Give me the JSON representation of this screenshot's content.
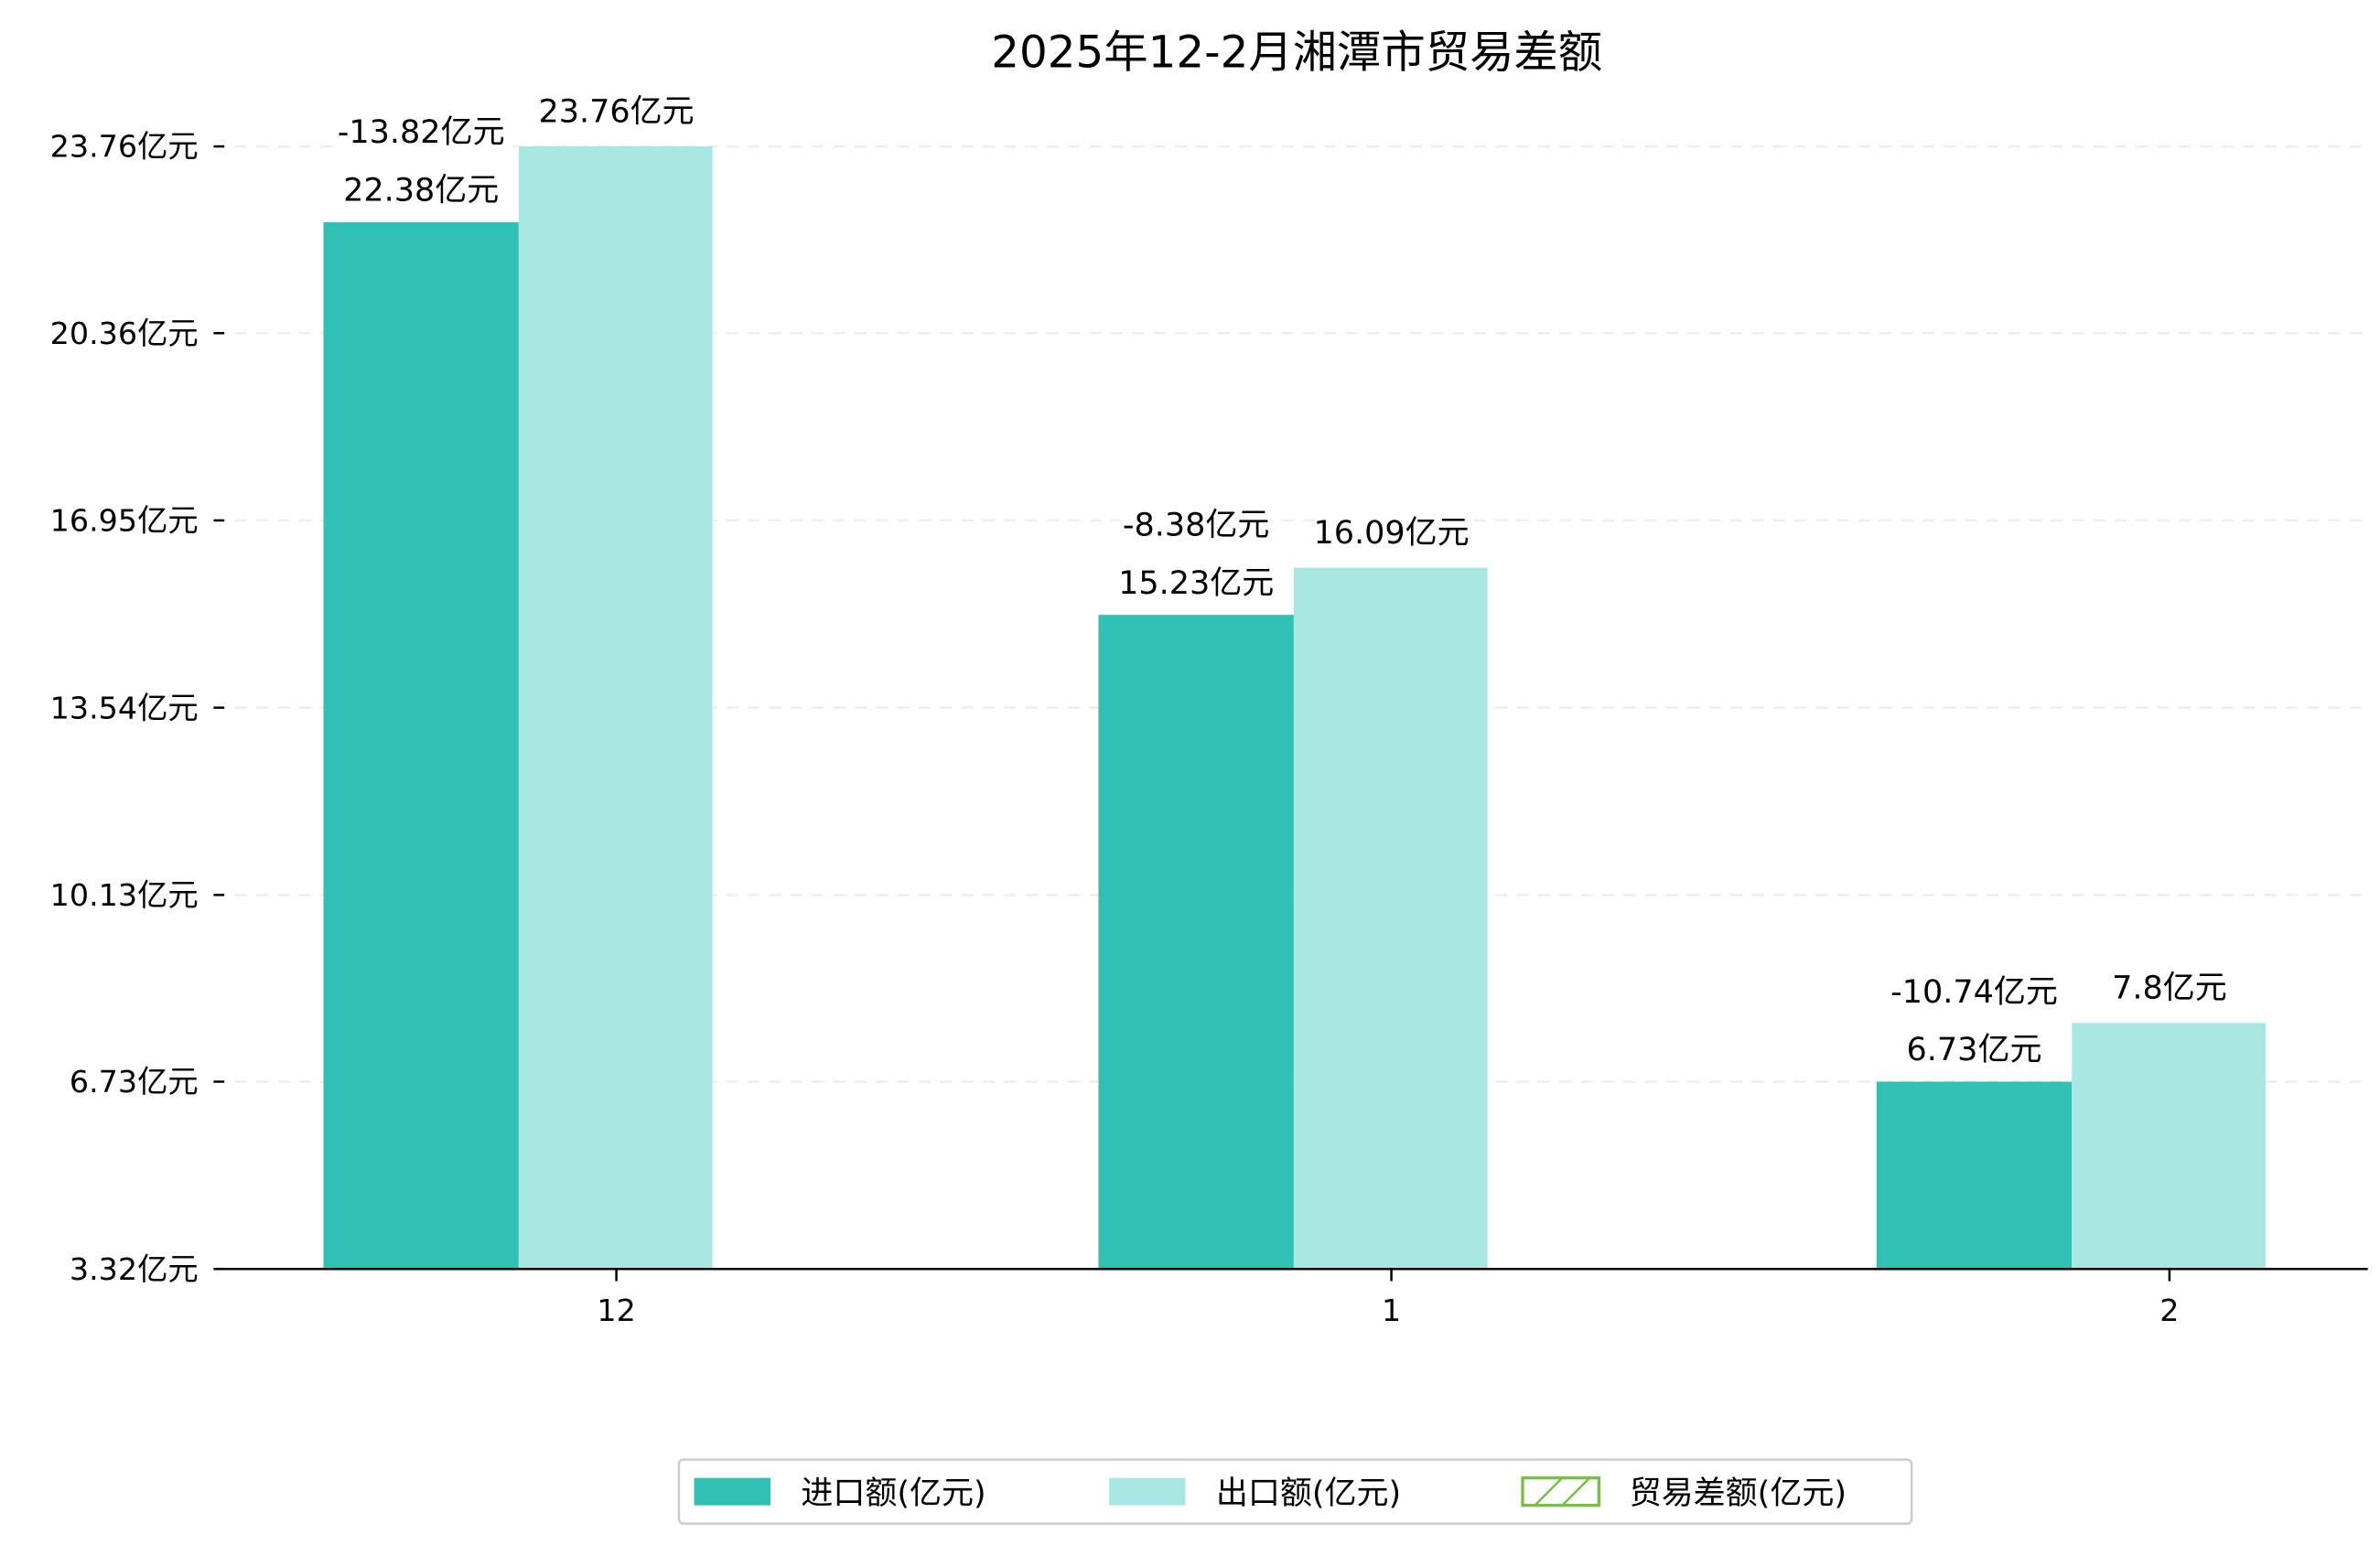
{
  "chart_data": {
    "type": "bar",
    "title": "2025年12-2月湘潭市贸易差额",
    "xlabel": "",
    "ylabel": "",
    "categories": [
      "12",
      "1",
      "2"
    ],
    "yticks": [
      "3.32亿元",
      "6.73亿元",
      "10.13亿元",
      "13.54亿元",
      "16.95亿元",
      "20.36亿元",
      "23.76亿元"
    ],
    "ytick_values": [
      3.32,
      6.73,
      10.13,
      13.54,
      16.95,
      20.36,
      23.76
    ],
    "ylim": [
      3.32,
      23.76
    ],
    "grid": "horizontal dashed",
    "legend_position": "bottom-center",
    "series": [
      {
        "name": "进口额(亿元)",
        "values": [
          22.38,
          15.23,
          6.73
        ],
        "labels": [
          "22.38亿元",
          "15.23亿元",
          "6.73亿元"
        ],
        "color": "#30c0b4",
        "style": "filled"
      },
      {
        "name": "出口额(亿元)",
        "values": [
          23.76,
          16.09,
          7.8
        ],
        "labels": [
          "23.76亿元",
          "16.09亿元",
          "7.8亿元"
        ],
        "color": "#a9e8e2",
        "style": "filled"
      },
      {
        "name": "贸易差额(亿元)",
        "values": [
          -13.82,
          -8.38,
          -10.74
        ],
        "labels": [
          "-13.82亿元",
          "-8.38亿元",
          "-10.74亿元"
        ],
        "color": "#76c043",
        "style": "hatched"
      }
    ]
  }
}
